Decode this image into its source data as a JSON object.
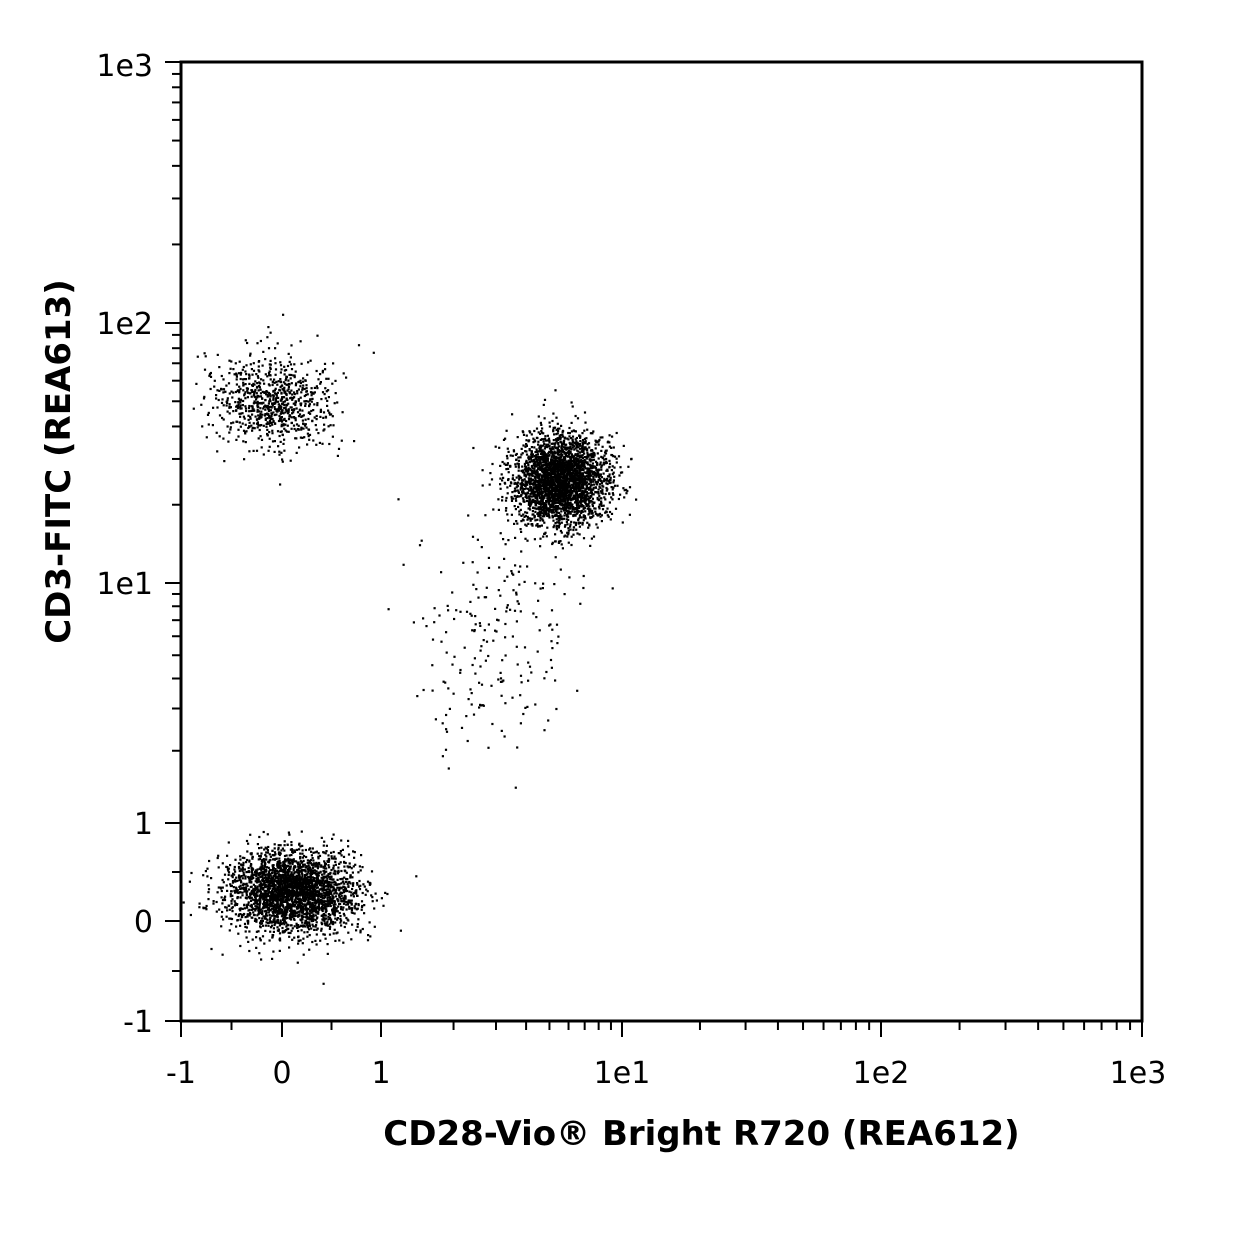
{
  "chart_data": {
    "type": "scatter",
    "subtype": "flow-cytometry-dot-plot",
    "title": "",
    "xlabel": "CD28-Vio® Bright R720 (REA612)",
    "ylabel": "CD3-FITC (REA613)",
    "x_scale": "biexponential",
    "y_scale": "biexponential",
    "xlim": [
      -1,
      1000
    ],
    "ylim": [
      -1,
      1000
    ],
    "x_ticks": [
      {
        "value": -1,
        "label": "-1"
      },
      {
        "value": 0,
        "label": "0"
      },
      {
        "value": 1,
        "label": "1"
      },
      {
        "value": 10,
        "label": "1e1"
      },
      {
        "value": 100,
        "label": "1e2"
      },
      {
        "value": 1000,
        "label": "1e3"
      }
    ],
    "y_ticks": [
      {
        "value": -1,
        "label": "-1"
      },
      {
        "value": 0,
        "label": "0"
      },
      {
        "value": 1,
        "label": "1"
      },
      {
        "value": 10,
        "label": "1e1"
      },
      {
        "value": 100,
        "label": "1e2"
      },
      {
        "value": 1000,
        "label": "1e3"
      }
    ],
    "grid": false,
    "legend": "none",
    "point_color": "#000000",
    "populations": [
      {
        "center_x": 0.1,
        "center_y": 0.3,
        "spread_x": 0.55,
        "spread_y": 0.35,
        "relative_density": 0.42
      },
      {
        "center_x": 5.5,
        "center_y": 25,
        "spread_x": 2.5,
        "spread_y": 10,
        "relative_density": 0.43
      },
      {
        "center_x": -0.1,
        "center_y": 50,
        "spread_x": 0.5,
        "spread_y": 20,
        "relative_density": 0.12
      },
      {
        "center_x": 3,
        "center_y": 6,
        "spread_x": 3,
        "spread_y": 8,
        "relative_density": 0.03
      }
    ]
  }
}
